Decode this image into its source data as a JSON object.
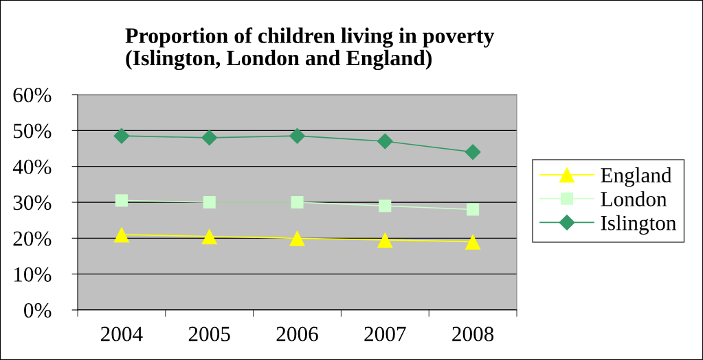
{
  "chart_data": {
    "type": "line",
    "title": "Proportion of children living in poverty\n(Islington, London and England)",
    "categories": [
      "2004",
      "2005",
      "2006",
      "2007",
      "2008"
    ],
    "series": [
      {
        "name": "England",
        "color": "#ffff00",
        "marker": "triangle",
        "values": [
          21,
          20.5,
          20,
          19.5,
          19
        ]
      },
      {
        "name": "London",
        "color": "#ccffcc",
        "marker": "square",
        "values": [
          30.5,
          30,
          30,
          29,
          28
        ]
      },
      {
        "name": "Islington",
        "color": "#339966",
        "marker": "diamond",
        "values": [
          48.5,
          48,
          48.5,
          47,
          44
        ]
      }
    ],
    "ylim": [
      0,
      60
    ],
    "yticks": [
      {
        "value": 0,
        "label": "0%"
      },
      {
        "value": 10,
        "label": "10%"
      },
      {
        "value": 20,
        "label": "20%"
      },
      {
        "value": 30,
        "label": "30%"
      },
      {
        "value": 40,
        "label": "40%"
      },
      {
        "value": 50,
        "label": "50%"
      },
      {
        "value": 60,
        "label": "60%"
      }
    ],
    "grid": "y",
    "legend": "right",
    "line_style": "solid"
  }
}
